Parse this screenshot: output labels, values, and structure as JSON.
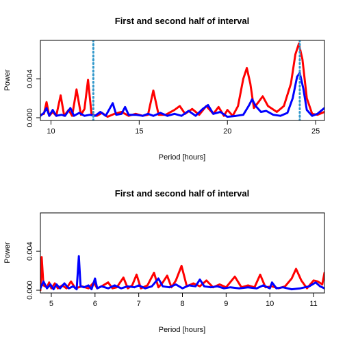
{
  "chart_data": [
    {
      "type": "line",
      "title": "First and second half of interval",
      "xlabel": "Period [hours]",
      "ylabel": "Power",
      "xlim": [
        9.4,
        25.5
      ],
      "ylim": [
        0,
        0.0078
      ],
      "x_ticks": [
        10,
        15,
        20,
        25
      ],
      "y_ticks": [
        0.0,
        0.004
      ],
      "y_tick_labels": [
        "0.000",
        "0.004"
      ],
      "vlines": [
        {
          "x": 12.4,
          "color": "#3399cc",
          "style": "dotted"
        },
        {
          "x": 24.1,
          "color": "#3399cc",
          "style": "dotted"
        }
      ],
      "series": [
        {
          "color": "#ff0000",
          "points": [
            [
              9.4,
              0.0003
            ],
            [
              9.6,
              0.0004
            ],
            [
              9.75,
              0.0016
            ],
            [
              9.9,
              0.0002
            ],
            [
              10.1,
              0.0006
            ],
            [
              10.3,
              0.0002
            ],
            [
              10.55,
              0.0023
            ],
            [
              10.75,
              0.0002
            ],
            [
              11.0,
              0.0008
            ],
            [
              11.2,
              0.0002
            ],
            [
              11.45,
              0.0029
            ],
            [
              11.7,
              0.0003
            ],
            [
              11.9,
              0.0009
            ],
            [
              12.1,
              0.0039
            ],
            [
              12.3,
              0.0003
            ],
            [
              12.6,
              0.0002
            ],
            [
              12.9,
              0.0005
            ],
            [
              13.2,
              0.0001
            ],
            [
              13.6,
              0.0004
            ],
            [
              14.0,
              0.0006
            ],
            [
              14.4,
              0.0002
            ],
            [
              14.8,
              0.0004
            ],
            [
              15.2,
              0.0002
            ],
            [
              15.5,
              0.0003
            ],
            [
              15.8,
              0.0028
            ],
            [
              16.1,
              0.0003
            ],
            [
              16.5,
              0.0003
            ],
            [
              17.0,
              0.0008
            ],
            [
              17.3,
              0.0012
            ],
            [
              17.6,
              0.0004
            ],
            [
              18.0,
              0.0009
            ],
            [
              18.4,
              0.0003
            ],
            [
              18.8,
              0.0012
            ],
            [
              19.2,
              0.0004
            ],
            [
              19.5,
              0.0011
            ],
            [
              19.8,
              0.0002
            ],
            [
              20.0,
              0.0008
            ],
            [
              20.3,
              0.0002
            ],
            [
              20.6,
              0.0012
            ],
            [
              20.9,
              0.004
            ],
            [
              21.1,
              0.0051
            ],
            [
              21.3,
              0.0035
            ],
            [
              21.5,
              0.001
            ],
            [
              21.8,
              0.0017
            ],
            [
              22.0,
              0.0022
            ],
            [
              22.3,
              0.0012
            ],
            [
              22.8,
              0.0006
            ],
            [
              23.2,
              0.0012
            ],
            [
              23.6,
              0.0035
            ],
            [
              23.85,
              0.0065
            ],
            [
              24.05,
              0.0076
            ],
            [
              24.25,
              0.006
            ],
            [
              24.5,
              0.002
            ],
            [
              24.8,
              0.0004
            ],
            [
              25.1,
              0.0003
            ],
            [
              25.5,
              0.0006
            ]
          ]
        },
        {
          "color": "#0000ff",
          "points": [
            [
              9.4,
              0.0002
            ],
            [
              9.6,
              0.0005
            ],
            [
              9.75,
              0.001
            ],
            [
              9.9,
              0.0002
            ],
            [
              10.1,
              0.0008
            ],
            [
              10.3,
              0.0002
            ],
            [
              10.6,
              0.0003
            ],
            [
              10.8,
              0.0002
            ],
            [
              11.1,
              0.001
            ],
            [
              11.3,
              0.0002
            ],
            [
              11.6,
              0.0005
            ],
            [
              11.9,
              0.0002
            ],
            [
              12.2,
              0.0003
            ],
            [
              12.5,
              0.0002
            ],
            [
              12.8,
              0.0006
            ],
            [
              13.1,
              0.0002
            ],
            [
              13.5,
              0.0015
            ],
            [
              13.7,
              0.0003
            ],
            [
              14.0,
              0.0004
            ],
            [
              14.2,
              0.0011
            ],
            [
              14.4,
              0.0003
            ],
            [
              14.8,
              0.0003
            ],
            [
              15.2,
              0.0002
            ],
            [
              15.5,
              0.0004
            ],
            [
              15.8,
              0.0002
            ],
            [
              16.2,
              0.0005
            ],
            [
              16.6,
              0.0002
            ],
            [
              17.0,
              0.0004
            ],
            [
              17.4,
              0.0002
            ],
            [
              17.8,
              0.0007
            ],
            [
              18.2,
              0.0002
            ],
            [
              18.6,
              0.0009
            ],
            [
              18.9,
              0.0013
            ],
            [
              19.2,
              0.0004
            ],
            [
              19.6,
              0.0006
            ],
            [
              20.0,
              0.0001
            ],
            [
              20.5,
              0.0002
            ],
            [
              20.9,
              0.0003
            ],
            [
              21.2,
              0.0012
            ],
            [
              21.4,
              0.0019
            ],
            [
              21.6,
              0.0012
            ],
            [
              21.9,
              0.0006
            ],
            [
              22.2,
              0.0007
            ],
            [
              22.6,
              0.0003
            ],
            [
              23.0,
              0.0002
            ],
            [
              23.4,
              0.0005
            ],
            [
              23.7,
              0.002
            ],
            [
              23.95,
              0.0042
            ],
            [
              24.1,
              0.0046
            ],
            [
              24.3,
              0.003
            ],
            [
              24.5,
              0.0008
            ],
            [
              24.8,
              0.0002
            ],
            [
              25.1,
              0.0004
            ],
            [
              25.5,
              0.001
            ]
          ]
        }
      ]
    },
    {
      "type": "line",
      "title": "First and second half of interval",
      "xlabel": "Period [hours]",
      "ylabel": "Power",
      "xlim": [
        4.75,
        11.25
      ],
      "ylim": [
        0,
        0.0078
      ],
      "x_ticks": [
        5,
        6,
        7,
        8,
        9,
        10,
        11
      ],
      "y_ticks": [
        0.0,
        0.004
      ],
      "y_tick_labels": [
        "0.000",
        "0.004"
      ],
      "vlines": [],
      "series": [
        {
          "color": "#ff0000",
          "points": [
            [
              4.75,
              0.0
            ],
            [
              4.78,
              0.0034
            ],
            [
              4.82,
              0.0005
            ],
            [
              4.9,
              0.0003
            ],
            [
              4.95,
              0.0008
            ],
            [
              5.0,
              0.0002
            ],
            [
              5.08,
              0.0007
            ],
            [
              5.15,
              0.0002
            ],
            [
              5.25,
              0.0005
            ],
            [
              5.35,
              0.0002
            ],
            [
              5.45,
              0.0009
            ],
            [
              5.55,
              0.0002
            ],
            [
              5.7,
              0.0004
            ],
            [
              5.85,
              0.0002
            ],
            [
              5.97,
              0.0008
            ],
            [
              6.05,
              0.0002
            ],
            [
              6.15,
              0.0004
            ],
            [
              6.3,
              0.0008
            ],
            [
              6.4,
              0.0002
            ],
            [
              6.5,
              0.0003
            ],
            [
              6.65,
              0.0013
            ],
            [
              6.75,
              0.0002
            ],
            [
              6.85,
              0.0005
            ],
            [
              6.95,
              0.0016
            ],
            [
              7.05,
              0.0002
            ],
            [
              7.2,
              0.0005
            ],
            [
              7.35,
              0.0018
            ],
            [
              7.45,
              0.0003
            ],
            [
              7.55,
              0.0008
            ],
            [
              7.65,
              0.0015
            ],
            [
              7.75,
              0.0003
            ],
            [
              7.85,
              0.001
            ],
            [
              7.98,
              0.0025
            ],
            [
              8.1,
              0.0004
            ],
            [
              8.25,
              0.0007
            ],
            [
              8.4,
              0.0004
            ],
            [
              8.55,
              0.001
            ],
            [
              8.7,
              0.0003
            ],
            [
              8.85,
              0.0006
            ],
            [
              9.0,
              0.0003
            ],
            [
              9.2,
              0.0014
            ],
            [
              9.35,
              0.0003
            ],
            [
              9.5,
              0.0005
            ],
            [
              9.65,
              0.0003
            ],
            [
              9.78,
              0.0016
            ],
            [
              9.9,
              0.0003
            ],
            [
              10.05,
              0.0004
            ],
            [
              10.2,
              0.0002
            ],
            [
              10.35,
              0.0004
            ],
            [
              10.5,
              0.0012
            ],
            [
              10.6,
              0.0022
            ],
            [
              10.72,
              0.001
            ],
            [
              10.85,
              0.0002
            ],
            [
              11.0,
              0.001
            ],
            [
              11.1,
              0.0009
            ],
            [
              11.2,
              0.0006
            ],
            [
              11.25,
              0.0018
            ]
          ]
        },
        {
          "color": "#0000ff",
          "points": [
            [
              4.75,
              0.0002
            ],
            [
              4.82,
              0.0009
            ],
            [
              4.9,
              0.0002
            ],
            [
              4.98,
              0.0006
            ],
            [
              5.05,
              0.0001
            ],
            [
              5.12,
              0.0006
            ],
            [
              5.2,
              0.0002
            ],
            [
              5.3,
              0.0007
            ],
            [
              5.4,
              0.0002
            ],
            [
              5.5,
              0.0004
            ],
            [
              5.58,
              0.0001
            ],
            [
              5.63,
              0.0035
            ],
            [
              5.67,
              0.0004
            ],
            [
              5.75,
              0.0003
            ],
            [
              5.85,
              0.0005
            ],
            [
              5.92,
              0.0001
            ],
            [
              6.0,
              0.0012
            ],
            [
              6.05,
              0.0002
            ],
            [
              6.15,
              0.0004
            ],
            [
              6.3,
              0.0002
            ],
            [
              6.45,
              0.0005
            ],
            [
              6.6,
              0.0002
            ],
            [
              6.75,
              0.0004
            ],
            [
              6.9,
              0.0003
            ],
            [
              7.0,
              0.0005
            ],
            [
              7.15,
              0.0002
            ],
            [
              7.3,
              0.0004
            ],
            [
              7.45,
              0.0012
            ],
            [
              7.55,
              0.0004
            ],
            [
              7.7,
              0.0003
            ],
            [
              7.85,
              0.0006
            ],
            [
              8.0,
              0.0002
            ],
            [
              8.15,
              0.0005
            ],
            [
              8.3,
              0.0004
            ],
            [
              8.4,
              0.0011
            ],
            [
              8.5,
              0.0004
            ],
            [
              8.65,
              0.0003
            ],
            [
              8.8,
              0.0004
            ],
            [
              8.95,
              0.0002
            ],
            [
              9.1,
              0.0003
            ],
            [
              9.3,
              0.0002
            ],
            [
              9.5,
              0.0003
            ],
            [
              9.7,
              0.0002
            ],
            [
              9.85,
              0.0005
            ],
            [
              10.0,
              0.0002
            ],
            [
              10.05,
              0.0008
            ],
            [
              10.15,
              0.0002
            ],
            [
              10.3,
              0.0003
            ],
            [
              10.5,
              0.0001
            ],
            [
              10.7,
              0.0002
            ],
            [
              10.9,
              0.0004
            ],
            [
              11.05,
              0.0008
            ],
            [
              11.15,
              0.0004
            ],
            [
              11.25,
              0.0002
            ]
          ]
        }
      ]
    }
  ]
}
